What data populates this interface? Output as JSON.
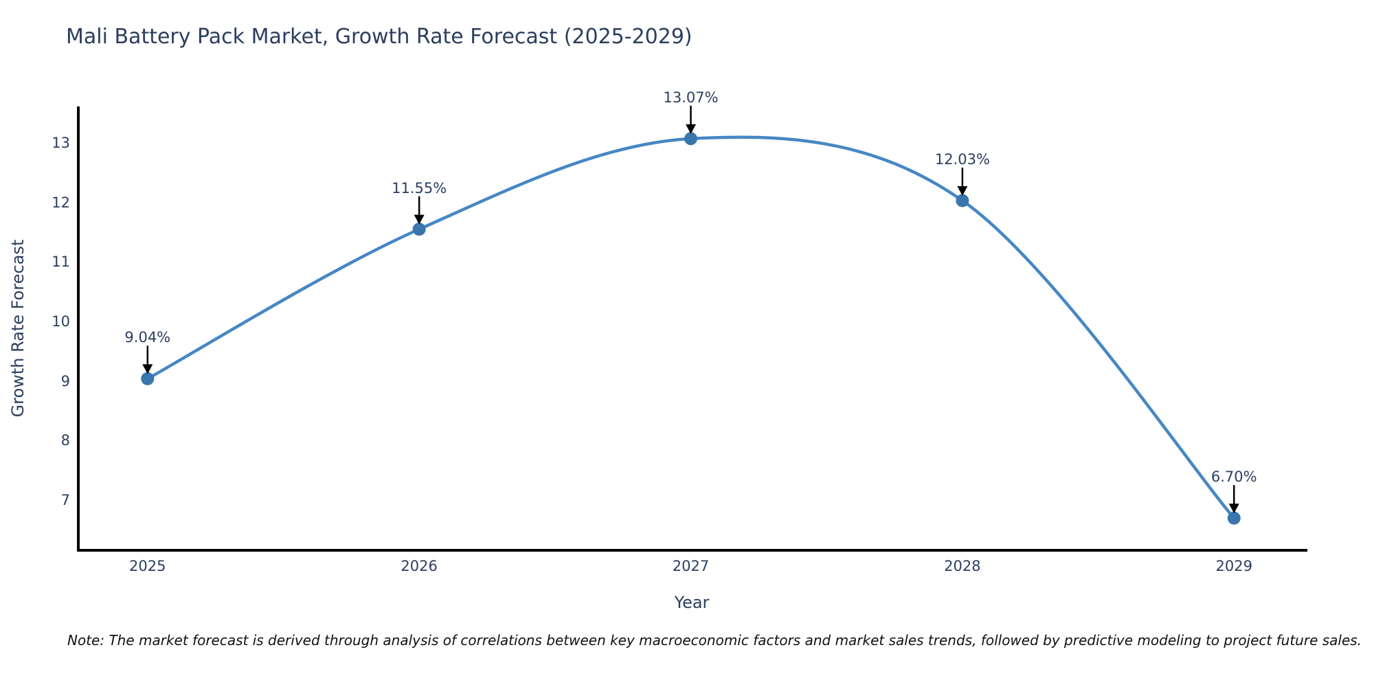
{
  "title": "Mali Battery Pack Market, Growth Rate Forecast (2025-2029)",
  "note": "Note: The market forecast is derived through analysis of correlations between key macroeconomic factors and market sales trends, followed by predictive modeling to project future sales.",
  "colors": {
    "line": "#4687c4",
    "marker": "#3a76ad",
    "axis_line": "#000000",
    "arrow": "#000000",
    "chart_text": "#2a3f5f",
    "note_text": "#111111",
    "background": "#ffffff"
  },
  "chart_data": {
    "type": "line",
    "title": "Mali Battery Pack Market, Growth Rate Forecast (2025-2029)",
    "xlabel": "Year",
    "ylabel": "Growth Rate Forecast",
    "x": [
      2025,
      2026,
      2027,
      2028,
      2029
    ],
    "series": [
      {
        "name": "Growth Rate Forecast",
        "values": [
          9.04,
          11.55,
          13.07,
          12.03,
          6.7
        ],
        "point_labels": [
          "9.04%",
          "11.55%",
          "13.07%",
          "12.03%",
          "6.70%"
        ]
      }
    ],
    "xticks": [
      "2025",
      "2026",
      "2027",
      "2028",
      "2029"
    ],
    "yticks": [
      7,
      8,
      9,
      10,
      11,
      12,
      13
    ],
    "xlim": [
      2024.74,
      2029.27
    ],
    "ylim": [
      6.16,
      13.61
    ],
    "grid": false,
    "legend_position": "none",
    "line_shape": "spline",
    "annotations": "each point labeled with value and downward black arrow"
  }
}
